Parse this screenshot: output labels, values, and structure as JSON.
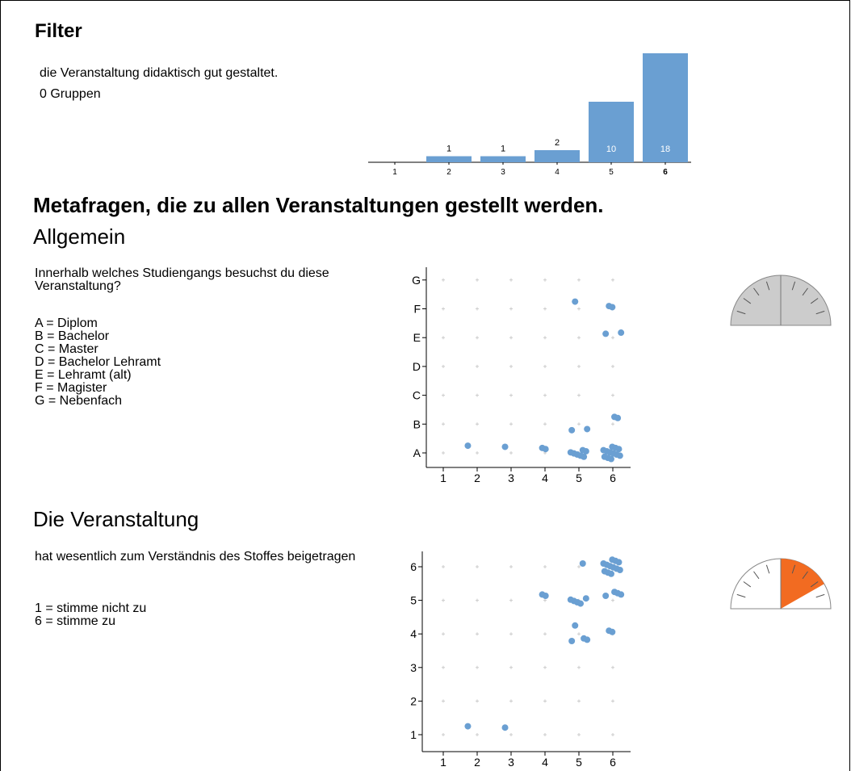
{
  "filter": {
    "title": "Filter",
    "question": "die Veranstaltung didaktisch gut gestaltet.",
    "groups": "0 Gruppen",
    "chart": {
      "type": "bar",
      "categories": [
        "1",
        "2",
        "3",
        "4",
        "5",
        "6"
      ],
      "values": [
        0,
        1,
        1,
        2,
        10,
        18
      ],
      "color": "#6a9fd2",
      "selected": 5
    }
  },
  "heading": "Metafragen, die zu allen Veranstaltungen gestellt werden.",
  "sections": [
    {
      "title": "Allgemein",
      "question": "Innerhalb welches Studiengangs besuchst du diese Veranstaltung?",
      "legend": [
        "A = Diplom",
        "B = Bachelor",
        "C = Master",
        "D = Bachelor Lehramt",
        "E = Lehramt (alt)",
        "F = Magister",
        "G = Nebenfach"
      ],
      "chart": {
        "type": "scatter",
        "color": "#6a9fd2",
        "x": [
          2,
          3,
          4,
          4,
          5,
          5,
          5,
          5,
          5,
          5,
          5,
          5,
          5,
          5,
          6,
          6,
          6,
          6,
          6,
          6,
          6,
          6,
          6,
          6,
          6,
          6,
          6,
          6,
          6,
          6,
          6,
          6
        ],
        "y": [
          1,
          1,
          1,
          1,
          1,
          1,
          1,
          1,
          1,
          1,
          1,
          2,
          2,
          6,
          1,
          1,
          1,
          1,
          1,
          1,
          1,
          1,
          1,
          1,
          1,
          1,
          2,
          2,
          5,
          5,
          6,
          6
        ],
        "xlim": [
          0.5,
          6.5
        ],
        "ylim": [
          0.5,
          7.5
        ],
        "xticks": [
          1,
          2,
          3,
          4,
          5,
          6
        ],
        "yticks": [
          {
            "value": 1,
            "label": "A"
          },
          {
            "value": 2,
            "label": "B"
          },
          {
            "value": 3,
            "label": "C"
          },
          {
            "value": 4,
            "label": "D"
          },
          {
            "value": 5,
            "label": "E"
          },
          {
            "value": 6,
            "label": "F"
          },
          {
            "value": 7,
            "label": "G"
          }
        ]
      },
      "gauge": {
        "value": null,
        "lim": [
          -1,
          1
        ]
      }
    },
    {
      "title": "Die Veranstaltung",
      "question": "hat wesentlich zum Verständnis des Stoffes beigetragen",
      "legend": [
        "1 = stimme nicht zu",
        "6 = stimme zu"
      ],
      "chart": {
        "type": "scatter",
        "color": "#6a9fd2",
        "x": [
          2,
          3,
          4,
          4,
          5,
          5,
          5,
          5,
          5,
          5,
          5,
          5,
          5,
          5,
          6,
          6,
          6,
          6,
          6,
          6,
          6,
          6,
          6,
          6,
          6,
          6,
          6,
          6,
          6,
          6,
          6,
          6
        ],
        "y": [
          1,
          1,
          5,
          5,
          6,
          5,
          5,
          5,
          5,
          5,
          4,
          4,
          4,
          4,
          6,
          6,
          6,
          6,
          6,
          6,
          6,
          6,
          6,
          6,
          6,
          6,
          5,
          5,
          5,
          5,
          4,
          4
        ],
        "xlim": [
          0.5,
          6.5
        ],
        "ylim": [
          0.5,
          6.5
        ],
        "xticks": [
          1,
          2,
          3,
          4,
          5,
          6
        ],
        "yticks": [
          1,
          2,
          3,
          4,
          5,
          6
        ]
      },
      "gauge": {
        "value": 0.67,
        "lim": [
          -1,
          1
        ],
        "color": "#f26b21"
      }
    }
  ]
}
